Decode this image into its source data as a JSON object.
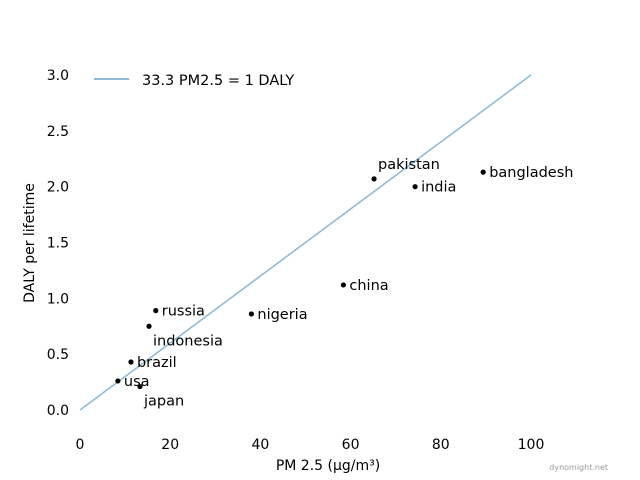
{
  "chart_data": {
    "type": "scatter",
    "title": "",
    "xlabel": "PM 2.5 (µg/m³)",
    "ylabel": "DALY per lifetime",
    "xlim": [
      0,
      100
    ],
    "ylim": [
      0,
      3.0
    ],
    "x_ticks": [
      0,
      20,
      40,
      60,
      80,
      100
    ],
    "y_ticks": [
      0.0,
      0.5,
      1.0,
      1.5,
      2.0,
      2.5,
      3.0
    ],
    "x_tick_labels": [
      "0",
      "20",
      "40",
      "60",
      "80",
      "100"
    ],
    "y_tick_labels": [
      "0.0",
      "0.5",
      "1.0",
      "1.5",
      "2.0",
      "2.5",
      "3.0"
    ],
    "grid": false,
    "legend_position": "top-left",
    "line": {
      "name": "33.3 PM2.5 = 1 DALY",
      "x": [
        0,
        100
      ],
      "y": [
        0,
        3.0
      ],
      "color": "#8fbbd9"
    },
    "points": [
      {
        "label": "bangladesh",
        "x": 89.4,
        "y": 2.13,
        "label_pos": "right"
      },
      {
        "label": "pakistan",
        "x": 65.2,
        "y": 2.07,
        "label_pos": "above-right"
      },
      {
        "label": "india",
        "x": 74.3,
        "y": 2.0,
        "label_pos": "right"
      },
      {
        "label": "china",
        "x": 58.4,
        "y": 1.12,
        "label_pos": "right"
      },
      {
        "label": "russia",
        "x": 16.8,
        "y": 0.89,
        "label_pos": "right"
      },
      {
        "label": "nigeria",
        "x": 38.0,
        "y": 0.86,
        "label_pos": "right"
      },
      {
        "label": "indonesia",
        "x": 15.3,
        "y": 0.75,
        "label_pos": "below-right"
      },
      {
        "label": "brazil",
        "x": 11.3,
        "y": 0.43,
        "label_pos": "right"
      },
      {
        "label": "usa",
        "x": 8.4,
        "y": 0.26,
        "label_pos": "right"
      },
      {
        "label": "japan",
        "x": 13.3,
        "y": 0.21,
        "label_pos": "below-right"
      }
    ],
    "point_color": "#000000"
  },
  "watermark": "dynomight.net"
}
